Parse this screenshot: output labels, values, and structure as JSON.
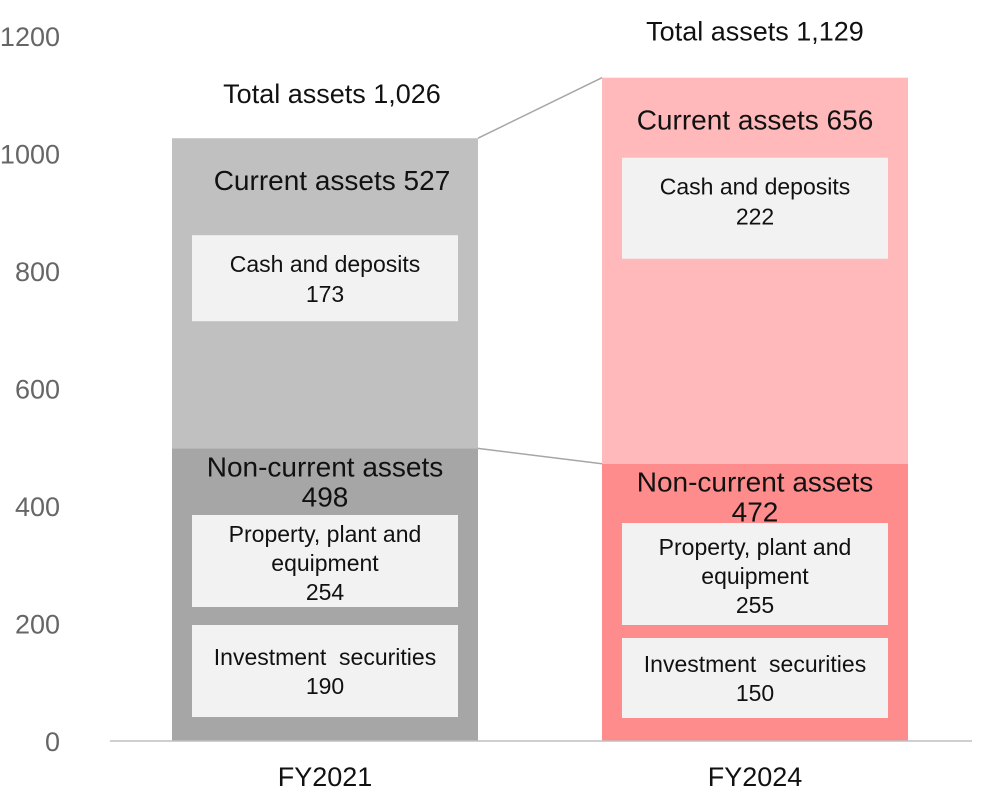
{
  "chart_data": {
    "type": "bar",
    "stacked": true,
    "ylim": [
      0,
      1200
    ],
    "y_ticks": [
      0,
      200,
      400,
      600,
      800,
      1000,
      1200
    ],
    "grid": false,
    "categories": [
      {
        "label": "FY2021",
        "total_label": "Total assets 1,026",
        "total": 1026,
        "colors": {
          "current": "#c0c0c0",
          "noncurrent": "#a6a6a6"
        },
        "current": {
          "title": "Current assets 527",
          "value": 527,
          "items": [
            {
              "lines": [
                "Cash and deposits",
                "173"
              ],
              "value": 173
            }
          ]
        },
        "noncurrent": {
          "title": [
            "Non-current assets",
            "498"
          ],
          "value": 498,
          "items": [
            {
              "lines": [
                "Property, plant and",
                "equipment",
                "254"
              ],
              "value": 254
            },
            {
              "lines": [
                "Investment  securities",
                "190"
              ],
              "value": 190
            }
          ]
        }
      },
      {
        "label": "FY2024",
        "total_label": "Total assets 1,129",
        "total": 1129,
        "colors": {
          "current": "#ffb9ba",
          "noncurrent": "#fe8c8c"
        },
        "current": {
          "title": "Current assets 656",
          "value": 656,
          "items": [
            {
              "lines": [
                "Cash and deposits",
                "222"
              ],
              "value": 222
            }
          ]
        },
        "noncurrent": {
          "title": [
            "Non-current assets",
            "472"
          ],
          "value": 472,
          "items": [
            {
              "lines": [
                "Property, plant and",
                "equipment",
                "255"
              ],
              "value": 255
            },
            {
              "lines": [
                "Investment  securities",
                "150"
              ],
              "value": 150
            }
          ]
        }
      }
    ],
    "box_color": "#f2f2f2",
    "connector_color": "#a6a6a6"
  }
}
